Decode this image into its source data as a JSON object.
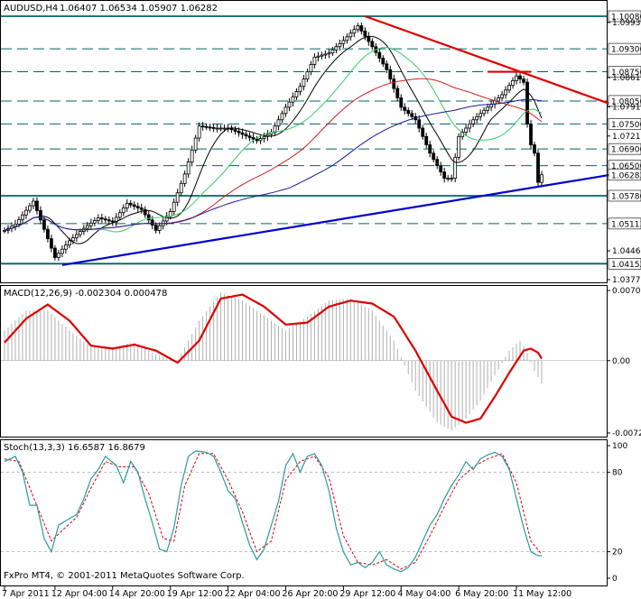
{
  "header": {
    "symbol": "AUDUSD,H4",
    "ohlc": "1.06407 1.06534 1.05907 1.06282"
  },
  "footer": {
    "copyright": "FxPro MT4, © 2001-2011 MetaQuotes Software Corp."
  },
  "colors": {
    "candle": "#000000",
    "sma_fast": "#000000",
    "sma_green": "#33cc66",
    "sma_red": "#cc2222",
    "sma_blue": "#1a1a99",
    "trend_red": "#dd0000",
    "trend_blue": "#0000cc",
    "level_line": "#006666",
    "macd_hist": "#b0b0b0",
    "macd_signal": "#dd0000",
    "stoch_main": "#2a9aa0",
    "stoch_signal": "#dd0000",
    "grid": "#999999"
  },
  "chart_data": [
    {
      "type": "candlestick",
      "panel": "price",
      "ylim": [
        1.0377,
        1.1008
      ],
      "price_labels": [
        "1.09930",
        "1.08610",
        "1.07910",
        "1.07210",
        "1.06282",
        "1.04460",
        "1.03770"
      ],
      "horizontal_levels": [
        {
          "label": "1.10080",
          "value": 1.1008,
          "style": "solid"
        },
        {
          "label": "1.09300",
          "value": 1.093,
          "style": "dashed"
        },
        {
          "label": "1.08750",
          "value": 1.0875,
          "style": "dashed"
        },
        {
          "label": "1.08050",
          "value": 1.0805,
          "style": "dashed"
        },
        {
          "label": "1.07500",
          "value": 1.075,
          "style": "dashed"
        },
        {
          "label": "1.06900",
          "value": 1.069,
          "style": "dashed"
        },
        {
          "label": "1.06500",
          "value": 1.065,
          "style": "dashed"
        },
        {
          "label": "1.05780",
          "value": 1.0578,
          "style": "solid"
        },
        {
          "label": "1.05113",
          "value": 1.05113,
          "style": "dashed"
        },
        {
          "label": "1.04152",
          "value": 1.04152,
          "style": "solid"
        }
      ],
      "current_price": {
        "label": "1.06282",
        "value": 1.06282
      },
      "x_labels": [
        "7 Apr 2011",
        "12 Apr 04:00",
        "14 Apr 20:00",
        "19 Apr 12:00",
        "22 Apr 04:00",
        "26 Apr 20:00",
        "29 Apr 12:00",
        "4 May 04:00",
        "6 May 20:00",
        "11 May 12:00"
      ],
      "x_label_index": [
        0,
        14,
        30,
        46,
        62,
        78,
        94,
        110,
        126,
        142
      ],
      "candle_count": 150,
      "close_anchors": [
        [
          0,
          1.0495
        ],
        [
          3,
          1.051
        ],
        [
          8,
          1.0565
        ],
        [
          10,
          1.052
        ],
        [
          14,
          1.043
        ],
        [
          18,
          1.047
        ],
        [
          22,
          1.05
        ],
        [
          26,
          1.0525
        ],
        [
          30,
          1.0515
        ],
        [
          34,
          1.056
        ],
        [
          38,
          1.0545
        ],
        [
          42,
          1.0495
        ],
        [
          46,
          1.054
        ],
        [
          50,
          1.063
        ],
        [
          54,
          1.0745
        ],
        [
          58,
          1.074
        ],
        [
          62,
          1.074
        ],
        [
          66,
          1.0725
        ],
        [
          70,
          1.071
        ],
        [
          74,
          1.073
        ],
        [
          78,
          1.079
        ],
        [
          82,
          1.084
        ],
        [
          86,
          1.091
        ],
        [
          90,
          1.092
        ],
        [
          94,
          1.095
        ],
        [
          98,
          1.0985
        ],
        [
          102,
          1.0935
        ],
        [
          106,
          1.088
        ],
        [
          110,
          1.079
        ],
        [
          114,
          1.076
        ],
        [
          118,
          1.068
        ],
        [
          122,
          1.062
        ],
        [
          124,
          1.062
        ],
        [
          126,
          1.072
        ],
        [
          130,
          1.076
        ],
        [
          134,
          1.079
        ],
        [
          138,
          1.082
        ],
        [
          142,
          1.0865
        ],
        [
          144,
          1.085
        ],
        [
          145,
          1.075
        ],
        [
          146,
          1.07
        ],
        [
          147,
          1.068
        ],
        [
          148,
          1.061
        ],
        [
          149,
          1.06282
        ]
      ],
      "trendlines": [
        {
          "name": "resistance",
          "from": [
            100,
            1.1008
          ],
          "to": [
            168,
            1.0798
          ]
        },
        {
          "name": "support",
          "from": [
            16,
            1.0412
          ],
          "to": [
            168,
            1.0628
          ]
        },
        {
          "name": "resistance-flat",
          "from": [
            134,
            1.0875
          ],
          "to": [
            146,
            1.0875
          ]
        }
      ]
    },
    {
      "type": "line",
      "panel": "macd",
      "label": "MACD(12,26,9) -0.002304 0.000478",
      "ylim": [
        -0.00723,
        0.00701
      ],
      "y_labels": [
        "0.00701",
        "0.00",
        "-0.00723"
      ],
      "signal_anchors": [
        [
          0,
          0.0018
        ],
        [
          6,
          0.0042
        ],
        [
          12,
          0.0056
        ],
        [
          18,
          0.004
        ],
        [
          24,
          0.0015
        ],
        [
          30,
          0.0012
        ],
        [
          36,
          0.0016
        ],
        [
          42,
          0.001
        ],
        [
          48,
          -0.0002
        ],
        [
          54,
          0.002
        ],
        [
          60,
          0.0062
        ],
        [
          66,
          0.0066
        ],
        [
          72,
          0.0054
        ],
        [
          78,
          0.0036
        ],
        [
          84,
          0.0038
        ],
        [
          90,
          0.0054
        ],
        [
          96,
          0.006
        ],
        [
          102,
          0.0057
        ],
        [
          108,
          0.0044
        ],
        [
          114,
          0.001
        ],
        [
          120,
          -0.003
        ],
        [
          124,
          -0.0056
        ],
        [
          128,
          -0.0062
        ],
        [
          132,
          -0.0058
        ],
        [
          136,
          -0.0036
        ],
        [
          140,
          -0.0012
        ],
        [
          144,
          0.001
        ],
        [
          146,
          0.0012
        ],
        [
          148,
          0.0008
        ],
        [
          149,
          0.0002
        ]
      ],
      "histogram_anchors": [
        [
          0,
          0.003
        ],
        [
          6,
          0.005
        ],
        [
          12,
          0.005
        ],
        [
          18,
          0.003
        ],
        [
          24,
          0.0014
        ],
        [
          30,
          0.0014
        ],
        [
          36,
          0.0018
        ],
        [
          42,
          0.0006
        ],
        [
          48,
          0.0
        ],
        [
          54,
          0.004
        ],
        [
          60,
          0.0068
        ],
        [
          66,
          0.006
        ],
        [
          72,
          0.0045
        ],
        [
          78,
          0.003
        ],
        [
          84,
          0.0044
        ],
        [
          90,
          0.006
        ],
        [
          96,
          0.0062
        ],
        [
          102,
          0.005
        ],
        [
          108,
          0.002
        ],
        [
          114,
          -0.003
        ],
        [
          120,
          -0.0062
        ],
        [
          124,
          -0.007
        ],
        [
          128,
          -0.0058
        ],
        [
          132,
          -0.004
        ],
        [
          136,
          -0.0015
        ],
        [
          140,
          0.001
        ],
        [
          143,
          0.002
        ],
        [
          145,
          0.0008
        ],
        [
          147,
          -0.001
        ],
        [
          149,
          -0.0023
        ]
      ]
    },
    {
      "type": "line",
      "panel": "stochastic",
      "label": "Stoch(13,3,3) 16.6587 16.8679",
      "ylim": [
        0,
        100
      ],
      "y_labels": [
        "100",
        "80",
        "20",
        "0"
      ],
      "main_anchors": [
        [
          0,
          88
        ],
        [
          3,
          92
        ],
        [
          5,
          80
        ],
        [
          7,
          55
        ],
        [
          9,
          55
        ],
        [
          11,
          30
        ],
        [
          13,
          20
        ],
        [
          15,
          40
        ],
        [
          18,
          45
        ],
        [
          20,
          48
        ],
        [
          22,
          60
        ],
        [
          24,
          75
        ],
        [
          26,
          82
        ],
        [
          28,
          92
        ],
        [
          31,
          85
        ],
        [
          33,
          72
        ],
        [
          35,
          88
        ],
        [
          37,
          80
        ],
        [
          39,
          60
        ],
        [
          41,
          42
        ],
        [
          43,
          22
        ],
        [
          45,
          20
        ],
        [
          47,
          38
        ],
        [
          49,
          70
        ],
        [
          51,
          92
        ],
        [
          53,
          96
        ],
        [
          56,
          95
        ],
        [
          58,
          92
        ],
        [
          60,
          80
        ],
        [
          62,
          66
        ],
        [
          64,
          60
        ],
        [
          66,
          42
        ],
        [
          68,
          25
        ],
        [
          70,
          14
        ],
        [
          72,
          22
        ],
        [
          74,
          40
        ],
        [
          76,
          58
        ],
        [
          78,
          85
        ],
        [
          80,
          94
        ],
        [
          82,
          80
        ],
        [
          84,
          92
        ],
        [
          86,
          94
        ],
        [
          88,
          85
        ],
        [
          90,
          66
        ],
        [
          92,
          38
        ],
        [
          94,
          20
        ],
        [
          96,
          10
        ],
        [
          98,
          12
        ],
        [
          100,
          8
        ],
        [
          102,
          12
        ],
        [
          104,
          20
        ],
        [
          106,
          10
        ],
        [
          108,
          7
        ],
        [
          110,
          5
        ],
        [
          112,
          8
        ],
        [
          114,
          16
        ],
        [
          116,
          28
        ],
        [
          118,
          40
        ],
        [
          120,
          48
        ],
        [
          122,
          60
        ],
        [
          124,
          70
        ],
        [
          126,
          78
        ],
        [
          128,
          88
        ],
        [
          130,
          82
        ],
        [
          132,
          90
        ],
        [
          134,
          93
        ],
        [
          136,
          95
        ],
        [
          138,
          92
        ],
        [
          140,
          82
        ],
        [
          142,
          60
        ],
        [
          144,
          38
        ],
        [
          146,
          20
        ],
        [
          148,
          17
        ],
        [
          149,
          17
        ]
      ],
      "signal_anchors": [
        [
          0,
          90
        ],
        [
          4,
          88
        ],
        [
          7,
          68
        ],
        [
          10,
          48
        ],
        [
          13,
          28
        ],
        [
          16,
          36
        ],
        [
          20,
          46
        ],
        [
          24,
          68
        ],
        [
          28,
          88
        ],
        [
          32,
          84
        ],
        [
          36,
          84
        ],
        [
          40,
          64
        ],
        [
          44,
          30
        ],
        [
          47,
          28
        ],
        [
          50,
          70
        ],
        [
          54,
          94
        ],
        [
          58,
          94
        ],
        [
          62,
          74
        ],
        [
          66,
          50
        ],
        [
          70,
          20
        ],
        [
          74,
          28
        ],
        [
          78,
          74
        ],
        [
          82,
          88
        ],
        [
          86,
          92
        ],
        [
          90,
          76
        ],
        [
          94,
          32
        ],
        [
          98,
          12
        ],
        [
          102,
          10
        ],
        [
          106,
          14
        ],
        [
          110,
          7
        ],
        [
          114,
          12
        ],
        [
          118,
          32
        ],
        [
          122,
          54
        ],
        [
          126,
          74
        ],
        [
          130,
          84
        ],
        [
          134,
          90
        ],
        [
          138,
          94
        ],
        [
          142,
          72
        ],
        [
          146,
          28
        ],
        [
          149,
          18
        ]
      ]
    }
  ]
}
